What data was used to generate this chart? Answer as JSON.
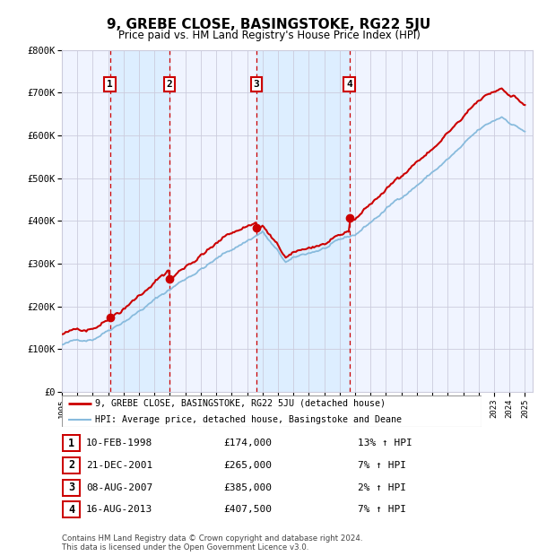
{
  "title": "9, GREBE CLOSE, BASINGSTOKE, RG22 5JU",
  "subtitle": "Price paid vs. HM Land Registry's House Price Index (HPI)",
  "y_ticks": [
    0,
    100000,
    200000,
    300000,
    400000,
    500000,
    600000,
    700000,
    800000
  ],
  "y_tick_labels": [
    "£0",
    "£100K",
    "£200K",
    "£300K",
    "£400K",
    "£500K",
    "£600K",
    "£700K",
    "£800K"
  ],
  "sale_color": "#cc0000",
  "hpi_color": "#88bbdd",
  "plot_bg_color": "#f0f4ff",
  "shade_color": "#ddeeff",
  "grid_color": "#ccccdd",
  "sale_points": [
    {
      "date_num": 1998.11,
      "price": 174000,
      "label": "1"
    },
    {
      "date_num": 2001.97,
      "price": 265000,
      "label": "2"
    },
    {
      "date_num": 2007.6,
      "price": 385000,
      "label": "3"
    },
    {
      "date_num": 2013.62,
      "price": 407500,
      "label": "4"
    }
  ],
  "vline_pairs": [
    [
      1998.11,
      2001.97
    ],
    [
      2007.6,
      2013.62
    ]
  ],
  "table_rows": [
    {
      "num": "1",
      "date": "10-FEB-1998",
      "price": "£174,000",
      "hpi": "13% ↑ HPI"
    },
    {
      "num": "2",
      "date": "21-DEC-2001",
      "price": "£265,000",
      "hpi": "7% ↑ HPI"
    },
    {
      "num": "3",
      "date": "08-AUG-2007",
      "price": "£385,000",
      "hpi": "2% ↑ HPI"
    },
    {
      "num": "4",
      "date": "16-AUG-2013",
      "price": "£407,500",
      "hpi": "7% ↑ HPI"
    }
  ],
  "footer": "Contains HM Land Registry data © Crown copyright and database right 2024.\nThis data is licensed under the Open Government Licence v3.0.",
  "legend_line1": "9, GREBE CLOSE, BASINGSTOKE, RG22 5JU (detached house)",
  "legend_line2": "HPI: Average price, detached house, Basingstoke and Deane"
}
